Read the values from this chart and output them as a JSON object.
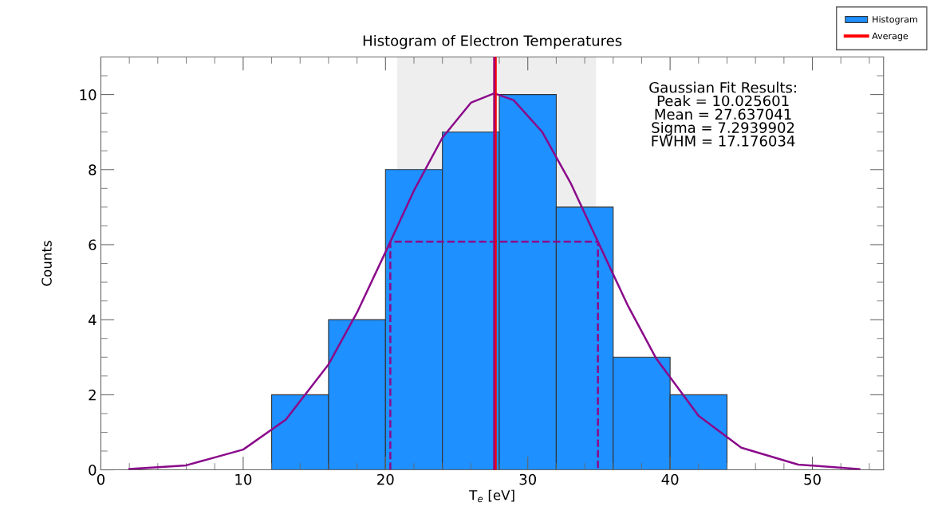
{
  "chart_data": {
    "type": "histogram",
    "title": "Histogram of Electron Temperatures",
    "xlabel": "T$_{e}$ [eV]",
    "ylabel": "Counts",
    "bins": [
      12,
      16,
      20,
      24,
      28,
      32,
      36,
      40,
      44
    ],
    "series": [
      {
        "name": "Histogram",
        "color": "#1e90ff",
        "values": [
          2,
          4,
          8,
          9,
          10,
          7,
          3,
          2
        ]
      },
      {
        "type": "line",
        "color": "#8b0a8b",
        "line_style": "solid",
        "x": [
          2,
          6,
          10,
          13,
          16,
          18,
          20,
          22,
          24,
          26,
          27.64,
          29,
          31,
          33,
          35,
          37,
          39,
          42,
          45,
          49,
          53.3
        ],
        "values": [
          0.02,
          0.12,
          0.54,
          1.34,
          2.81,
          4.19,
          5.8,
          7.44,
          8.85,
          9.78,
          10.03,
          9.85,
          9.01,
          7.65,
          6.02,
          4.4,
          2.98,
          1.44,
          0.59,
          0.14,
          0.02
        ]
      },
      {
        "type": "line",
        "color": "#8b0a8b",
        "line_style": "dashed",
        "x": [
          20.34,
          20.34,
          34.93,
          34.93
        ],
        "values": [
          0,
          6.08,
          6.08,
          0
        ]
      }
    ],
    "ref_lines": [
      {
        "axis": "x",
        "value": 27.7,
        "label": "Average",
        "color": "#ff0000",
        "line_style": "solid"
      },
      {
        "axis": "x",
        "value": 27.64,
        "color": "#8b0a8b",
        "line_style": "solid"
      }
    ],
    "bands": [
      {
        "axis": "x",
        "from": 20.83,
        "to": 34.8,
        "color": "#eeeeee"
      }
    ],
    "annotations": [
      "Gaussian Fit Results:\nPeak = 10.025601\nMean = 27.637041\nSigma = 7.2939902\nFWHM = 17.176034"
    ],
    "xlim": [
      0,
      55
    ],
    "ylim": [
      0,
      11
    ],
    "xticks": [
      0,
      10,
      20,
      30,
      40,
      50
    ],
    "yticks": [
      0,
      2,
      4,
      6,
      8,
      10
    ],
    "grid": false,
    "legend": "top right"
  }
}
